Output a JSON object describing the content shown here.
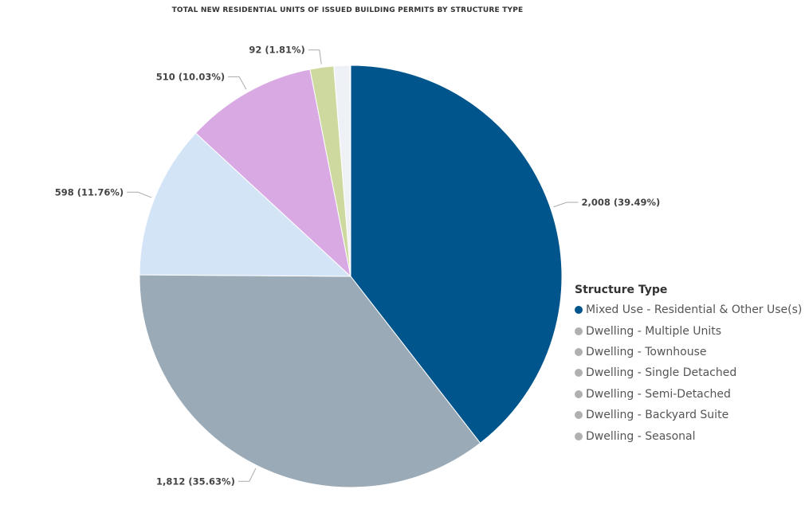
{
  "chart_data": {
    "type": "pie",
    "title": "TOTAL NEW RESIDENTIAL UNITS OF ISSUED BUILDING PERMITS BY STRUCTURE TYPE",
    "legend_title": "Structure Type",
    "legend_placement": "right",
    "slices": [
      {
        "name": "Mixed Use - Residential & Other Use(s)",
        "value": 2008,
        "label": "2,008 (39.49%)",
        "color": "#00558C",
        "legend_color": "#00558C"
      },
      {
        "name": "Dwelling - Multiple Units",
        "value": 1812,
        "label": "1,812 (35.63%)",
        "color": "#9AAAB7",
        "legend_color": "#B0B0B0"
      },
      {
        "name": "Dwelling - Townhouse",
        "value": 598,
        "label": "598 (11.76%)",
        "color": "#D3E4F7",
        "legend_color": "#B0B0B0"
      },
      {
        "name": "Dwelling - Single Detached",
        "value": 510,
        "label": "510 (10.03%)",
        "color": "#D9A9E3",
        "legend_color": "#B0B0B0"
      },
      {
        "name": "Dwelling - Semi-Detached",
        "value": 92,
        "label": "92 (1.81%)",
        "color": "#CDD99E",
        "legend_color": "#B0B0B0"
      },
      {
        "name": "Dwelling - Backyard Suite",
        "value": 63,
        "label": "",
        "color": "#EEF2F7",
        "legend_color": "#B0B0B0"
      },
      {
        "name": "Dwelling - Seasonal",
        "value": 2,
        "label": "",
        "color": "#E0E0E0",
        "legend_color": "#B0B0B0"
      }
    ]
  }
}
